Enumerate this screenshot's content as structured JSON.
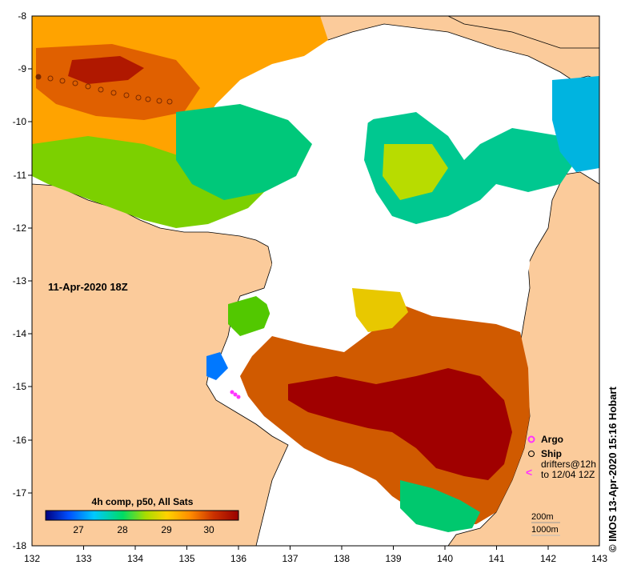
{
  "map": {
    "date_label": "11-Apr-2020 18Z",
    "lon_ticks": [
      "132",
      "133",
      "134",
      "135",
      "136",
      "137",
      "138",
      "139",
      "140",
      "141",
      "142",
      "143"
    ],
    "lat_ticks": [
      "-8",
      "-9",
      "-10",
      "-11",
      "-12",
      "-13",
      "-14",
      "-15",
      "-16",
      "-17",
      "-18"
    ],
    "land_color": "#fbcb9b",
    "nodata_color": "#ffffff"
  },
  "legend": {
    "argo_label": "Argo",
    "ship_label": "Ship",
    "drifters_label_1": "drifters@12h",
    "drifters_label_2": "to 12/04 12Z",
    "drifter_symbol": "<",
    "argo_color": "#ff33ff",
    "contour_1": "200m",
    "contour_2": "1000m"
  },
  "colorbar": {
    "title": "4h comp, p50, All Sats",
    "tick_labels": [
      "27",
      "28",
      "29",
      "30"
    ],
    "stops": [
      "#000080",
      "#0050ff",
      "#00c8ff",
      "#00dc64",
      "#aadc00",
      "#ffd200",
      "#ff8c00",
      "#cc3200",
      "#990000"
    ]
  },
  "footer": {
    "credit": "© IMOS 13-Apr-2020 15:16 Hobart"
  }
}
